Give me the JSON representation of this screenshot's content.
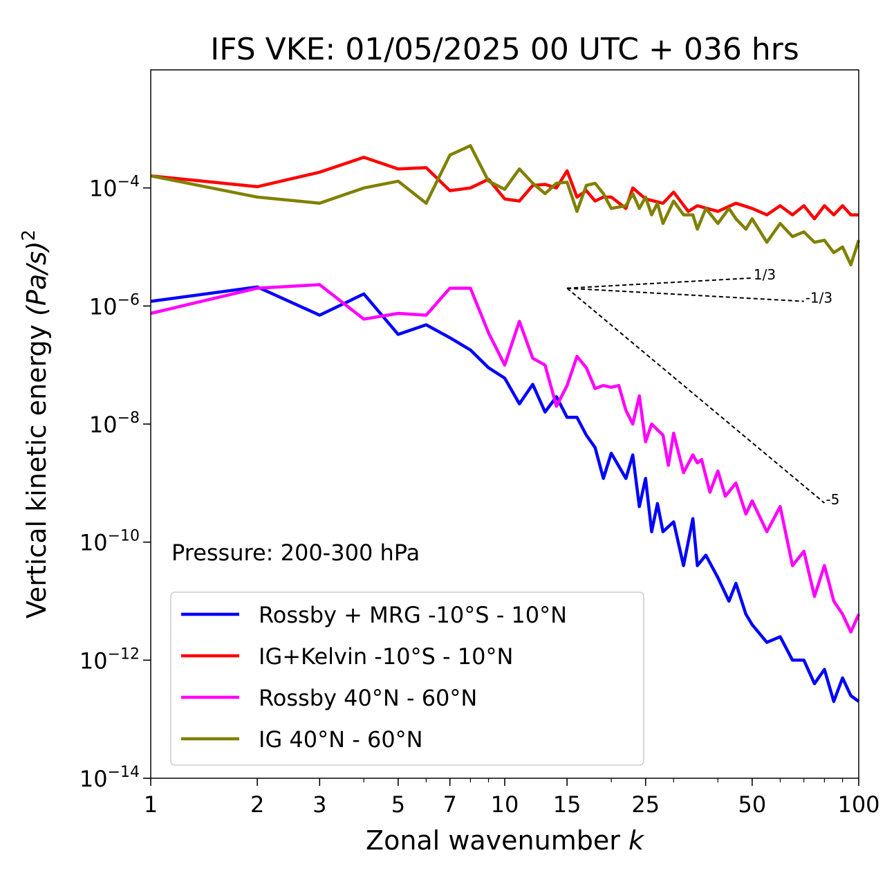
{
  "chart_data": {
    "type": "line",
    "title": "IFS VKE: 01/05/2025 00 UTC + 036 hrs",
    "xlabel": "Zonal wavenumber",
    "xlabel_var": "k",
    "ylabel": "Vertical kinetic energy",
    "ylabel_units": "(Pa/s)",
    "ylabel_exp": "2",
    "x_scale": "log",
    "y_scale": "log",
    "xlim": [
      1,
      100
    ],
    "ylim": [
      1e-14,
      0.01
    ],
    "x_ticks": [
      {
        "value": 1,
        "label": "1"
      },
      {
        "value": 2,
        "label": "2"
      },
      {
        "value": 3,
        "label": "3"
      },
      {
        "value": 5,
        "label": "5"
      },
      {
        "value": 7,
        "label": "7"
      },
      {
        "value": 10,
        "label": "10"
      },
      {
        "value": 15,
        "label": "15"
      },
      {
        "value": 25,
        "label": "25"
      },
      {
        "value": 50,
        "label": "50"
      },
      {
        "value": 100,
        "label": "100"
      }
    ],
    "y_ticks": [
      {
        "value": 0.0001,
        "base": "10",
        "exp": "−4"
      },
      {
        "value": 1e-06,
        "base": "10",
        "exp": "−6"
      },
      {
        "value": 1e-08,
        "base": "10",
        "exp": "−8"
      },
      {
        "value": 1e-10,
        "base": "10",
        "exp": "−10"
      },
      {
        "value": 1e-12,
        "base": "10",
        "exp": "−12"
      },
      {
        "value": 1e-14,
        "base": "10",
        "exp": "−14"
      }
    ],
    "annotation": "Pressure: 200-300 hPa",
    "legend_position": "lower-left",
    "grid": false,
    "series": [
      {
        "name": "Rossby + MRG -10°S - 10°N",
        "color": "#0000ff",
        "x": [
          1,
          2,
          3,
          4,
          5,
          6,
          7,
          8,
          9,
          10,
          11,
          12,
          13,
          14,
          15,
          16,
          17,
          18,
          19,
          20,
          22,
          23,
          24,
          25,
          26,
          27,
          28,
          30,
          32,
          34,
          35,
          37,
          40,
          43,
          45,
          48,
          50,
          55,
          60,
          65,
          70,
          75,
          80,
          85,
          90,
          95,
          100
        ],
        "y": [
          1.2e-06,
          2.1e-06,
          7e-07,
          1.6e-06,
          3.3e-07,
          4.8e-07,
          2.9e-07,
          1.8e-07,
          9e-08,
          6e-08,
          2.2e-08,
          4.7e-08,
          1.6e-08,
          2.9e-08,
          1.3e-08,
          1.3e-08,
          6.5e-09,
          4e-09,
          1.2e-09,
          3.2e-09,
          1.2e-09,
          3e-09,
          4e-10,
          1.2e-09,
          1.5e-10,
          4.5e-10,
          1.5e-10,
          2.2e-10,
          4e-11,
          2.5e-10,
          4e-11,
          6e-11,
          2.5e-11,
          1e-11,
          2e-11,
          6e-12,
          4e-12,
          2e-12,
          2.5e-12,
          1e-12,
          1e-12,
          4e-13,
          7e-13,
          2e-13,
          5e-13,
          2.5e-13,
          2e-13
        ]
      },
      {
        "name": "IG+Kelvin -10°S - 10°N",
        "color": "#ff0000",
        "x": [
          1,
          2,
          3,
          4,
          5,
          6,
          7,
          8,
          9,
          10,
          11,
          12,
          13,
          14,
          15,
          16,
          17,
          18,
          19,
          20,
          22,
          23,
          25,
          28,
          30,
          33,
          35,
          40,
          45,
          50,
          55,
          60,
          65,
          70,
          75,
          80,
          85,
          90,
          95,
          100
        ],
        "y": [
          0.00016,
          0.000105,
          0.000185,
          0.00033,
          0.00021,
          0.00022,
          9e-05,
          0.0001,
          0.00014,
          6.5e-05,
          6e-05,
          0.00011,
          0.000115,
          0.0001,
          0.000195,
          7e-05,
          9e-05,
          6e-05,
          7e-05,
          7e-05,
          4.5e-05,
          0.0001,
          6.5e-05,
          5.5e-05,
          8.5e-05,
          4e-05,
          5e-05,
          4e-05,
          5.5e-05,
          4.5e-05,
          3.5e-05,
          5e-05,
          3.5e-05,
          5e-05,
          3e-05,
          5e-05,
          3.5e-05,
          5e-05,
          3.5e-05,
          3.5e-05
        ]
      },
      {
        "name": "Rossby 40°N - 60°N",
        "color": "#ff00ff",
        "x": [
          1,
          2,
          3,
          4,
          5,
          6,
          7,
          8,
          9,
          10,
          11,
          12,
          13,
          14,
          15,
          16,
          17,
          18,
          19,
          20,
          21,
          22,
          23,
          24,
          25,
          26,
          27,
          28,
          29,
          30,
          32,
          34,
          35,
          36,
          38,
          40,
          42,
          45,
          48,
          50,
          55,
          60,
          65,
          70,
          75,
          80,
          85,
          90,
          95,
          100
        ],
        "y": [
          7.5e-07,
          2e-06,
          2.3e-06,
          6e-07,
          7.5e-07,
          7e-07,
          2e-06,
          2e-06,
          3.5e-07,
          1e-07,
          5.5e-07,
          1.3e-07,
          1e-07,
          2e-08,
          4.5e-08,
          1.4e-07,
          9e-08,
          4e-08,
          4.5e-08,
          4.2e-08,
          4.5e-08,
          1.7e-08,
          1e-08,
          3e-08,
          5e-09,
          1e-08,
          8e-09,
          6.5e-09,
          2e-09,
          7e-09,
          1.5e-09,
          3e-09,
          2.2e-09,
          2.5e-09,
          7e-10,
          1.6e-09,
          6e-10,
          1e-09,
          3e-10,
          5e-10,
          1.5e-10,
          4e-10,
          4e-11,
          7e-11,
          1.2e-11,
          4e-11,
          1e-11,
          6e-12,
          3e-12,
          6e-12
        ]
      },
      {
        "name": "IG 40°N - 60°N",
        "color": "#808000",
        "x": [
          1,
          2,
          3,
          4,
          5,
          6,
          7,
          8,
          9,
          10,
          11,
          12,
          13,
          14,
          15,
          16,
          17,
          18,
          19,
          20,
          22,
          23,
          24,
          25,
          26,
          27,
          28,
          30,
          32,
          34,
          35,
          37,
          40,
          43,
          45,
          48,
          50,
          55,
          60,
          65,
          70,
          75,
          80,
          85,
          90,
          95,
          100
        ],
        "y": [
          0.00016,
          7e-05,
          5.5e-05,
          0.0001,
          0.00013,
          5.5e-05,
          0.00036,
          0.00052,
          0.00013,
          9.5e-05,
          0.00021,
          0.00012,
          8e-05,
          0.00012,
          0.000125,
          4e-05,
          0.00011,
          0.00012,
          8e-05,
          4.5e-05,
          5e-05,
          8e-05,
          4.5e-05,
          7e-05,
          3.5e-05,
          5.5e-05,
          2.5e-05,
          6e-05,
          3.5e-05,
          3.5e-05,
          2e-05,
          4.5e-05,
          2.5e-05,
          4.5e-05,
          3e-05,
          2e-05,
          3e-05,
          1.2e-05,
          2.5e-05,
          1.5e-05,
          1.8e-05,
          1.2e-05,
          1.3e-05,
          8e-06,
          1e-05,
          5e-06,
          1.3e-05
        ]
      }
    ],
    "reference_slopes": [
      {
        "label": "1/3",
        "x": [
          15,
          50
        ],
        "y": [
          2e-06,
          2.98e-06
        ]
      },
      {
        "label": "-1/3",
        "x": [
          15,
          70
        ],
        "y": [
          2e-06,
          1.2e-06
        ]
      },
      {
        "label": "-5",
        "x": [
          15,
          80
        ],
        "y": [
          2e-06,
          4.6e-10
        ]
      }
    ]
  }
}
